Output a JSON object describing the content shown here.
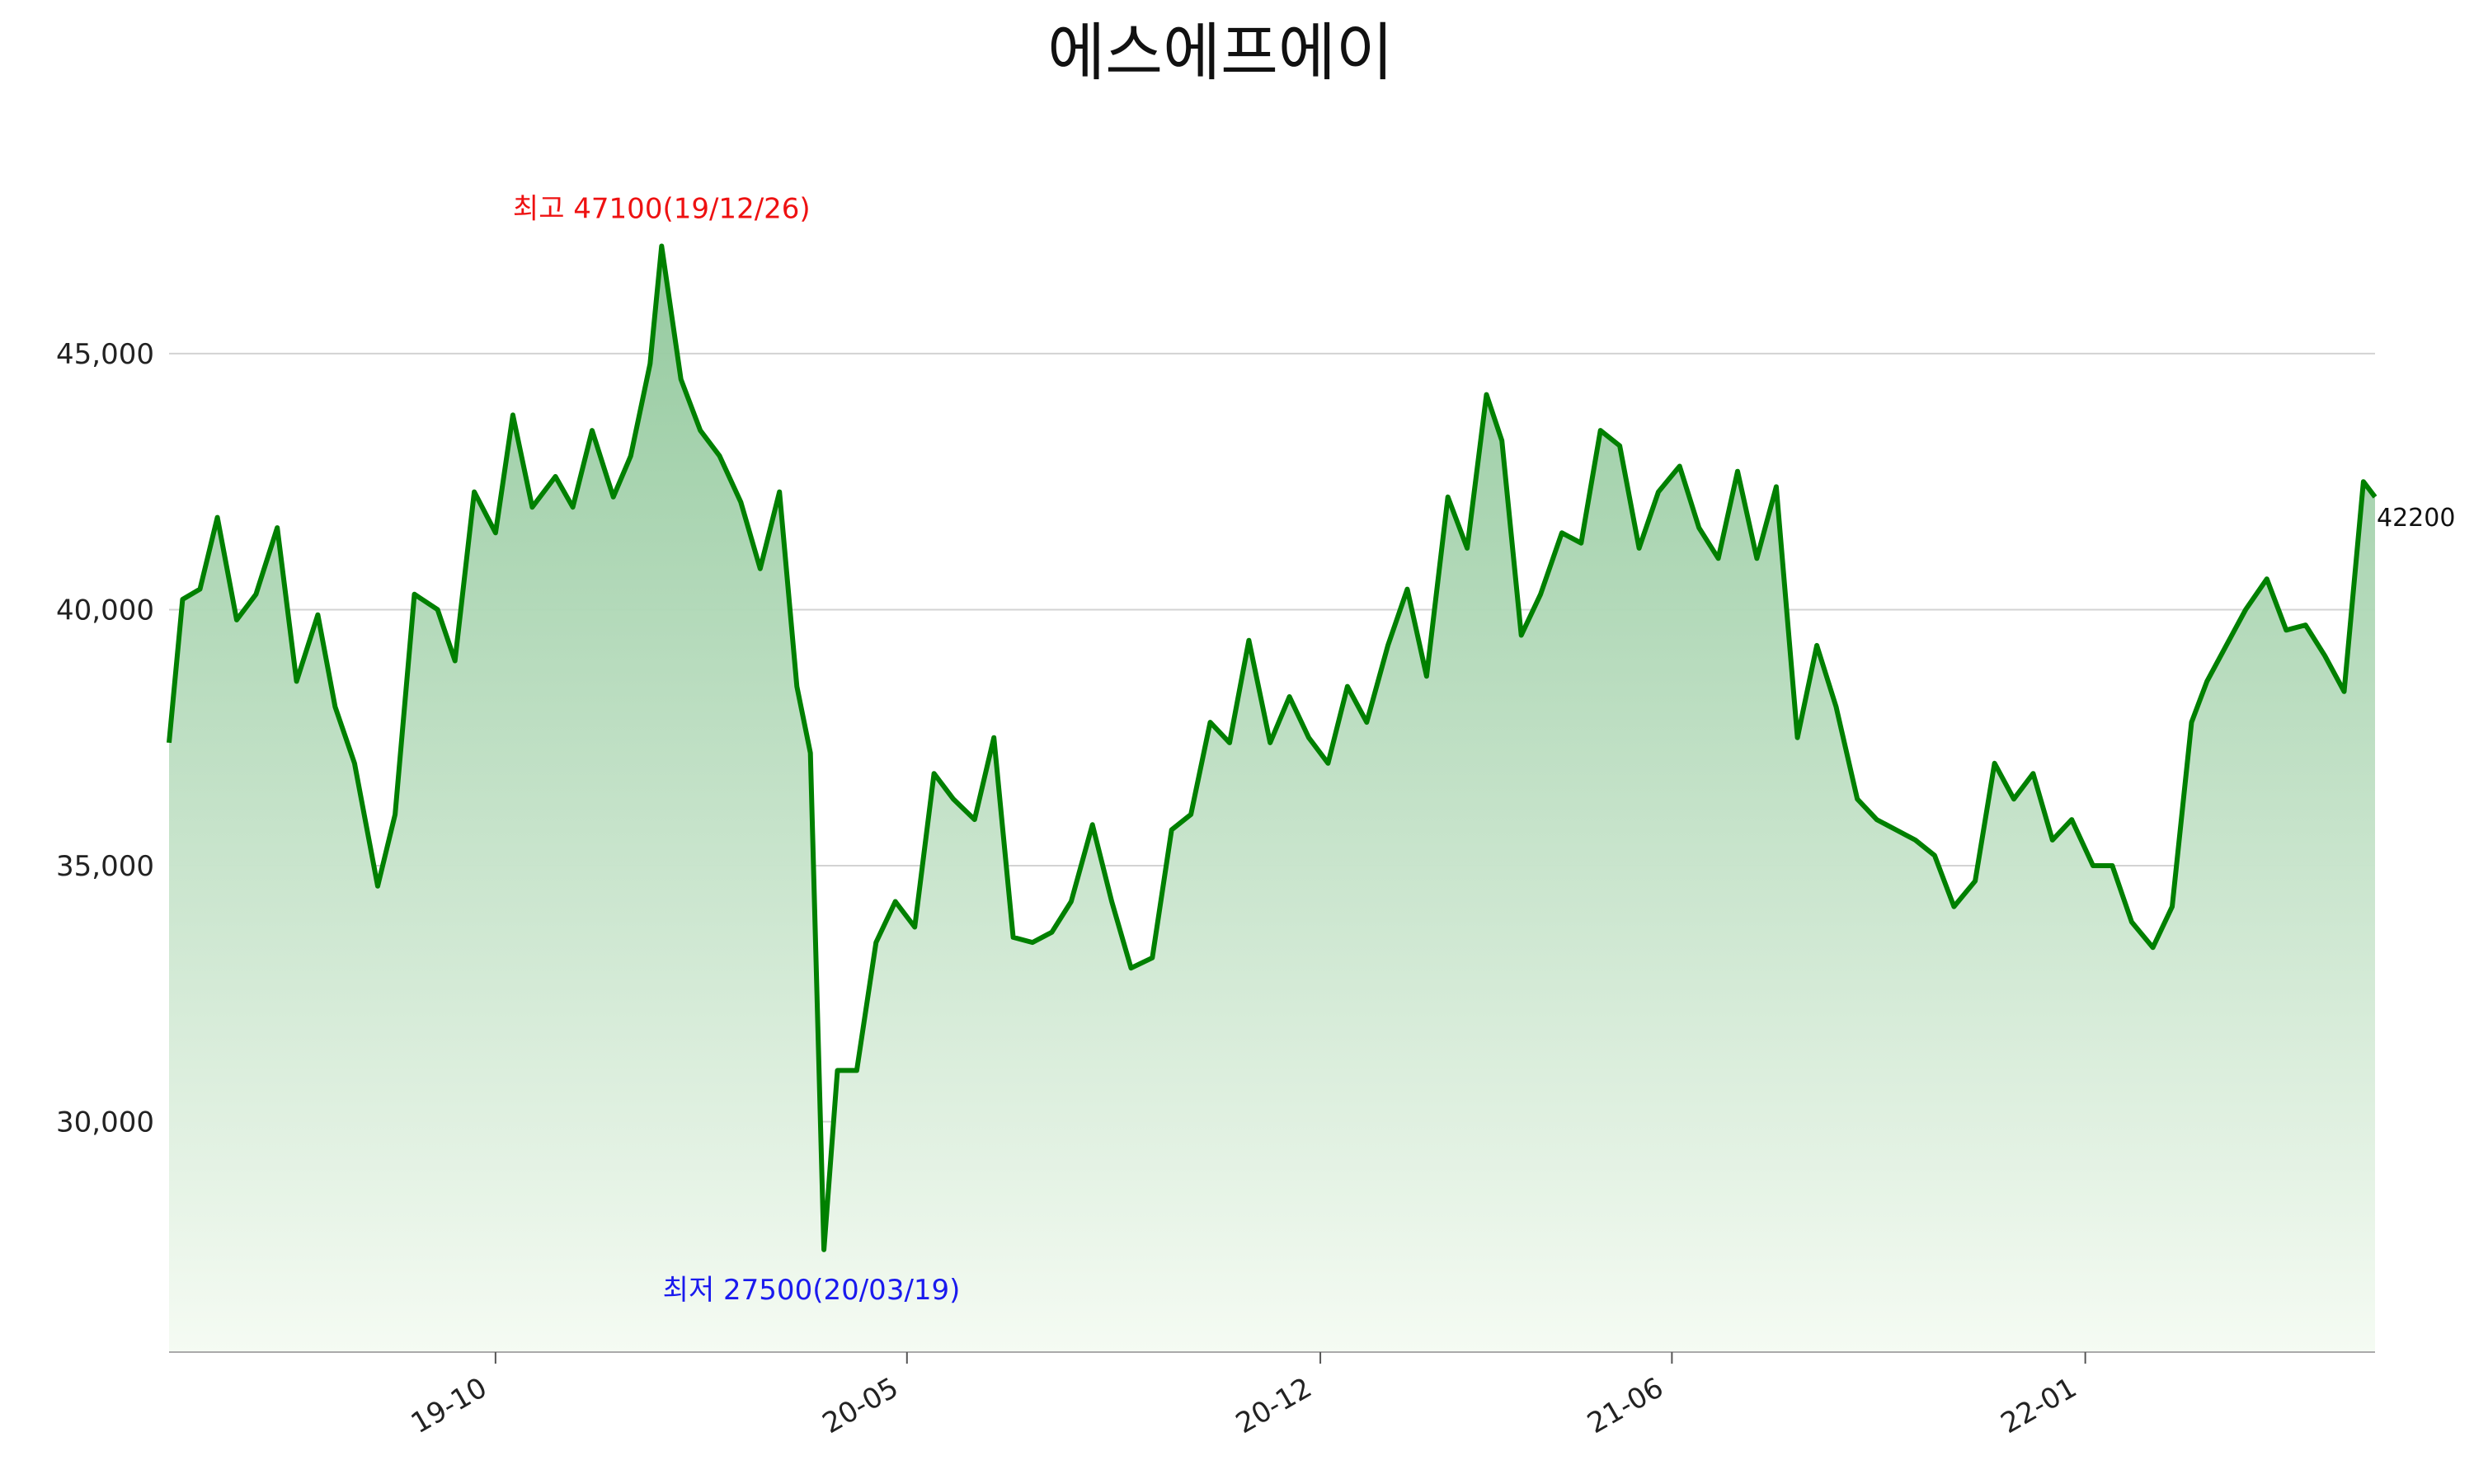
{
  "chart_data": {
    "type": "area",
    "title": "에스에프에이",
    "xlabel": "",
    "ylabel": "",
    "ylim": [
      25500,
      47800
    ],
    "grid": true,
    "legend": "none",
    "line_color": "#008000",
    "fill_color_top": "#8fc79a",
    "fill_color_bottom": "#f5fbf3",
    "x_ticks": [
      {
        "date": "2019-10-01",
        "label": "19-10"
      },
      {
        "date": "2020-05-01",
        "label": "20-05"
      },
      {
        "date": "2020-12-01",
        "label": "20-12"
      },
      {
        "date": "2021-06-01",
        "label": "21-06"
      },
      {
        "date": "2022-01-01",
        "label": "22-01"
      }
    ],
    "y_ticks": [
      {
        "value": 30000,
        "label": "30,000"
      },
      {
        "value": 35000,
        "label": "35,000"
      },
      {
        "value": 40000,
        "label": "40,000"
      },
      {
        "value": 45000,
        "label": "45,000"
      }
    ],
    "annotations": {
      "high": {
        "label": "최고 47100(19/12/26)",
        "date": "2019-12-26",
        "value": 47100,
        "color": "#ee1111"
      },
      "low": {
        "label": "최저 27500(20/03/19)",
        "date": "2020-03-19",
        "value": 27500,
        "color": "#1a1aee"
      },
      "last": {
        "label": "42200",
        "value": 42200
      }
    },
    "x_range": [
      "2019-04-15",
      "2022-05-31"
    ],
    "series": [
      {
        "x": [
          "2019-04-15",
          "2019-04-22",
          "2019-05-01",
          "2019-05-10",
          "2019-05-20",
          "2019-05-30",
          "2019-06-10",
          "2019-06-20",
          "2019-07-01",
          "2019-07-10",
          "2019-07-20",
          "2019-08-01",
          "2019-08-10",
          "2019-08-20",
          "2019-09-01",
          "2019-09-10",
          "2019-09-20",
          "2019-10-01",
          "2019-10-10",
          "2019-10-20",
          "2019-11-01",
          "2019-11-10",
          "2019-11-20",
          "2019-12-01",
          "2019-12-10",
          "2019-12-20",
          "2019-12-26",
          "2020-01-05",
          "2020-01-15",
          "2020-01-25",
          "2020-02-05",
          "2020-02-15",
          "2020-02-25",
          "2020-03-05",
          "2020-03-12",
          "2020-03-19",
          "2020-03-26",
          "2020-04-05",
          "2020-04-15",
          "2020-04-25",
          "2020-05-05",
          "2020-05-15",
          "2020-05-25",
          "2020-06-05",
          "2020-06-15",
          "2020-06-25",
          "2020-07-05",
          "2020-07-15",
          "2020-07-25",
          "2020-08-05",
          "2020-08-15",
          "2020-08-25",
          "2020-09-05",
          "2020-09-15",
          "2020-09-25",
          "2020-10-05",
          "2020-10-15",
          "2020-10-25",
          "2020-11-05",
          "2020-11-15",
          "2020-11-25",
          "2020-12-05",
          "2020-12-15",
          "2020-12-25",
          "2021-01-05",
          "2021-01-15",
          "2021-01-25",
          "2021-02-05",
          "2021-02-15",
          "2021-02-25",
          "2021-03-05",
          "2021-03-15",
          "2021-03-25",
          "2021-04-05",
          "2021-04-15",
          "2021-04-25",
          "2021-05-05",
          "2021-05-15",
          "2021-05-25",
          "2021-06-05",
          "2021-06-15",
          "2021-06-25",
          "2021-07-05",
          "2021-07-15",
          "2021-07-25",
          "2021-08-05",
          "2021-08-15",
          "2021-08-25",
          "2021-09-05",
          "2021-09-15",
          "2021-09-25",
          "2021-10-05",
          "2021-10-15",
          "2021-10-25",
          "2021-11-05",
          "2021-11-15",
          "2021-11-25",
          "2021-12-05",
          "2021-12-15",
          "2021-12-25",
          "2022-01-05",
          "2022-01-15",
          "2022-01-25",
          "2022-02-05",
          "2022-02-15",
          "2022-02-25",
          "2022-03-05",
          "2022-03-15",
          "2022-03-25",
          "2022-04-05",
          "2022-04-15",
          "2022-04-25",
          "2022-05-05",
          "2022-05-15",
          "2022-05-25",
          "2022-05-31"
        ],
        "y": [
          37400,
          40200,
          40400,
          41800,
          39800,
          40300,
          41600,
          38600,
          39900,
          38100,
          37000,
          34600,
          36000,
          40300,
          40000,
          39000,
          42300,
          41500,
          43800,
          42000,
          42600,
          42000,
          43500,
          42200,
          43000,
          44800,
          47100,
          44500,
          43500,
          43000,
          42100,
          40800,
          42300,
          38500,
          37200,
          27500,
          31000,
          31000,
          33500,
          34300,
          33800,
          36800,
          36300,
          35900,
          37500,
          33600,
          33500,
          33700,
          34300,
          35800,
          34300,
          33000,
          33200,
          35700,
          36000,
          37800,
          37400,
          39400,
          37400,
          38300,
          37500,
          37000,
          38500,
          37800,
          39300,
          40400,
          38700,
          42200,
          41200,
          44200,
          43300,
          39500,
          40300,
          41500,
          41300,
          43500,
          43200,
          41200,
          42300,
          42800,
          41600,
          41000,
          42700,
          41000,
          42400,
          37500,
          39300,
          38100,
          36300,
          35900,
          35700,
          35500,
          35200,
          34200,
          34700,
          37000,
          36300,
          36800,
          35500,
          35900,
          35000,
          35000,
          33900,
          33400,
          34200,
          37800,
          38600,
          39300,
          40000,
          40600,
          39600,
          39700,
          39100,
          38400,
          42500,
          42200
        ]
      }
    ]
  }
}
